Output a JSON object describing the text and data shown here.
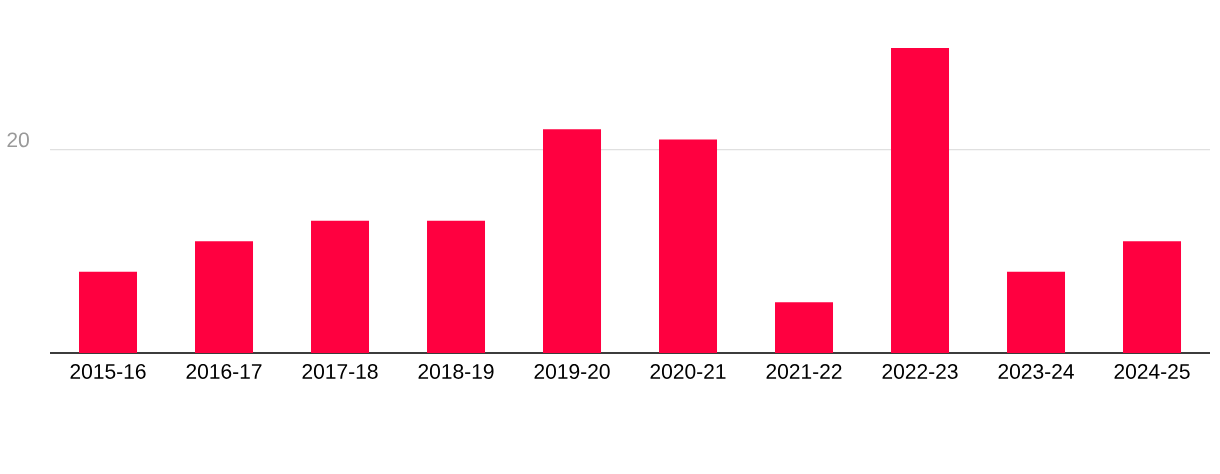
{
  "chart_data": {
    "type": "bar",
    "categories": [
      "2015-16",
      "2016-17",
      "2017-18",
      "2018-19",
      "2019-20",
      "2020-21",
      "2021-22",
      "2022-23",
      "2023-24",
      "2024-25"
    ],
    "values": [
      8,
      11,
      13,
      13,
      22,
      21,
      5,
      30,
      8,
      11
    ],
    "color": "#ff0040",
    "ylim": [
      0,
      30
    ],
    "yticks": [
      {
        "value": 0,
        "label": null
      },
      20
    ],
    "grid": "y"
  }
}
